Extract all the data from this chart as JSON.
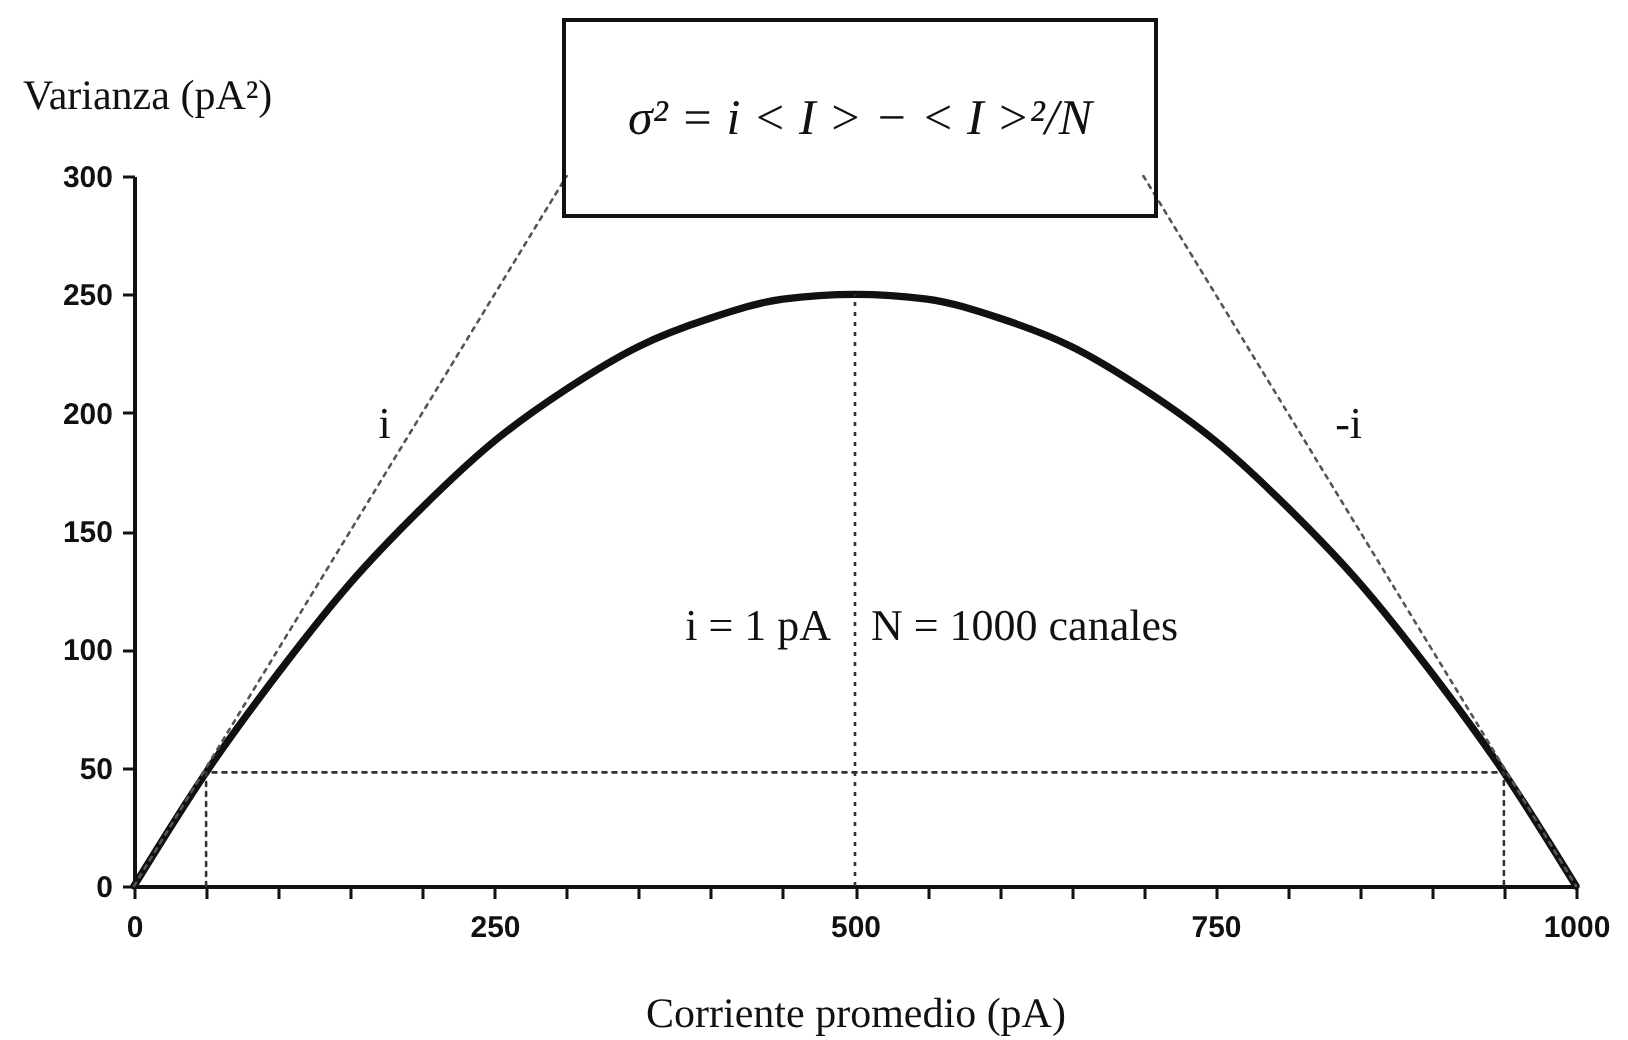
{
  "chart_data": {
    "type": "line",
    "xlabel": "Corriente promedio (pA)",
    "ylabel": "Varianza (pA²)",
    "annotations": [
      "σ² = i < I > − < I >²/N",
      "i = 1 pA",
      "N = 1000 canales"
    ],
    "xlim": [
      0,
      1000
    ],
    "ylim": [
      0,
      300
    ],
    "xticks": [
      0,
      {
        "value": 50,
        "label": null
      },
      {
        "value": 100,
        "label": null
      },
      {
        "value": 150,
        "label": null
      },
      {
        "value": 200,
        "label": null
      },
      250,
      {
        "value": 300,
        "label": null
      },
      {
        "value": 350,
        "label": null
      },
      {
        "value": 400,
        "label": null
      },
      {
        "value": 450,
        "label": null
      },
      500,
      {
        "value": 550,
        "label": null
      },
      {
        "value": 600,
        "label": null
      },
      {
        "value": 650,
        "label": null
      },
      {
        "value": 700,
        "label": null
      },
      750,
      {
        "value": 800,
        "label": null
      },
      {
        "value": 850,
        "label": null
      },
      {
        "value": 900,
        "label": null
      },
      {
        "value": 950,
        "label": null
      },
      1000
    ],
    "yticks": [
      0,
      50,
      100,
      150,
      200,
      250,
      300
    ],
    "series": [
      {
        "color": "#111111",
        "line_style": "solid",
        "x": [
          0,
          50,
          100,
          150,
          200,
          250,
          300,
          350,
          400,
          450,
          500,
          550,
          600,
          650,
          700,
          750,
          800,
          850,
          900,
          950,
          1000
        ],
        "values": [
          0,
          48,
          90,
          128,
          160,
          188,
          210,
          228,
          240,
          248,
          250,
          248,
          240,
          228,
          210,
          188,
          160,
          128,
          90,
          48,
          0
        ]
      },
      {
        "name": "i",
        "color": "#555555",
        "line_style": "dotted",
        "x": [
          0,
          300
        ],
        "values": [
          0,
          300
        ]
      },
      {
        "name": "-i",
        "color": "#555555",
        "line_style": "dotted",
        "x": [
          700,
          1000
        ],
        "values": [
          300,
          0
        ]
      },
      {
        "color": "#333333",
        "line_style": "dotted",
        "x": [
          50,
          50,
          950,
          950
        ],
        "values": [
          0,
          48,
          48,
          0
        ]
      }
    ],
    "ref_lines": [
      {
        "axis": "x",
        "value": 500,
        "color": "#333333",
        "line_style": "dotted"
      }
    ]
  }
}
